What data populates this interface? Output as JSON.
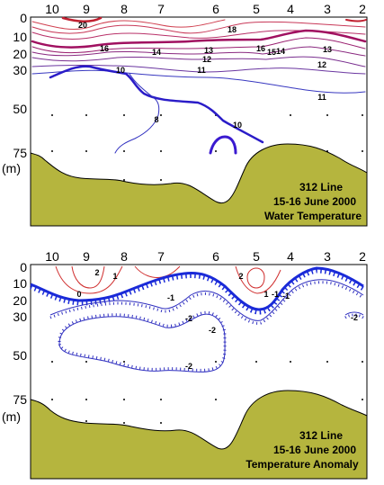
{
  "colors": {
    "bottom_fill": "#b5b53e",
    "warm": "#d03030",
    "warm_dark": "#a01060",
    "cool": "#3030c0",
    "cool_dark": "#2a1cc8"
  },
  "chart_data": [
    {
      "type": "contour",
      "title_lines": [
        "312 Line",
        "15-16 June 2000",
        "Water Temperature"
      ],
      "station_labels": [
        "10",
        "9",
        "8",
        "7",
        "6",
        "5",
        "4",
        "3",
        "2"
      ],
      "depth_tick_labels": [
        "0",
        "10",
        "20",
        "30",
        "50",
        "75"
      ],
      "depth_unit_label": "(m)",
      "depth_values": [
        0,
        10,
        20,
        30,
        50,
        75
      ],
      "contour_labels": [
        "20",
        "18",
        "16",
        "16",
        "15",
        "14",
        "13",
        "13",
        "12",
        "12",
        "11",
        "11",
        "10",
        "10",
        "8",
        "14"
      ]
    },
    {
      "type": "contour",
      "title_lines": [
        "312 Line",
        "15-16 June 2000",
        "Temperature Anomaly"
      ],
      "station_labels": [
        "10",
        "9",
        "8",
        "7",
        "6",
        "5",
        "4",
        "3",
        "2"
      ],
      "depth_tick_labels": [
        "0",
        "10",
        "20",
        "30",
        "50",
        "75"
      ],
      "depth_unit_label": "(m)",
      "depth_values": [
        0,
        10,
        20,
        30,
        50,
        75
      ],
      "contour_labels": [
        "2",
        "1",
        "0",
        "2",
        "1",
        "-1",
        "-2",
        "-2",
        "-2",
        "-1",
        "-1",
        "-2"
      ]
    }
  ]
}
